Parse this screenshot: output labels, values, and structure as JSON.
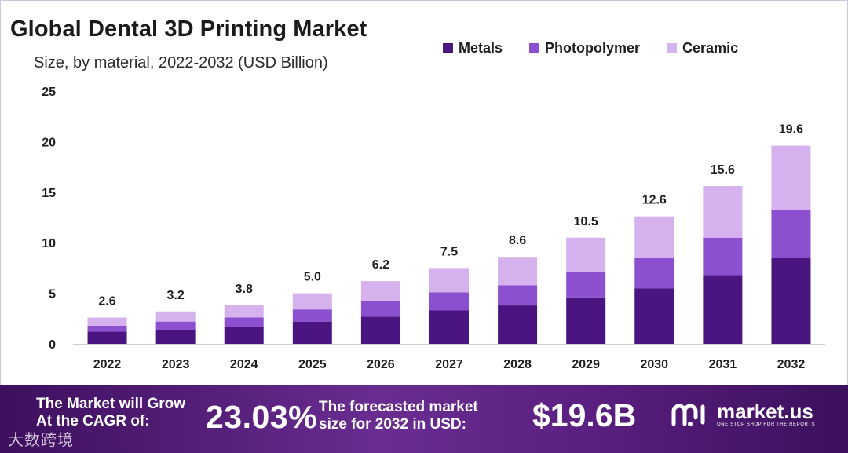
{
  "header": {
    "title": "Global Dental 3D Printing Market",
    "subtitle": "Size, by material, 2022-2032 (USD Billion)"
  },
  "colors": {
    "metals": "#4a1580",
    "photopolymer": "#8c4fd0",
    "ceramic": "#d5b1ee",
    "axis": "#cccccc",
    "banner_start": "#3d0f5e",
    "banner_end": "#6a2c91"
  },
  "chart_data": {
    "type": "bar",
    "stacked": true,
    "title": "Global Dental 3D Printing Market",
    "subtitle": "Size, by material, 2022-2032 (USD Billion)",
    "xlabel": "",
    "ylabel": "",
    "ylim": [
      0,
      25
    ],
    "yticks": [
      0,
      5,
      10,
      15,
      20,
      25
    ],
    "legend_position": "top-right",
    "grid": false,
    "categories": [
      "2022",
      "2023",
      "2024",
      "2025",
      "2026",
      "2027",
      "2028",
      "2029",
      "2030",
      "2031",
      "2032"
    ],
    "series": [
      {
        "name": "Metals",
        "values": [
          1.2,
          1.4,
          1.7,
          2.2,
          2.7,
          3.3,
          3.8,
          4.6,
          5.5,
          6.8,
          8.5
        ]
      },
      {
        "name": "Photopolymer",
        "values": [
          0.6,
          0.8,
          0.9,
          1.2,
          1.5,
          1.8,
          2.0,
          2.5,
          3.0,
          3.7,
          4.7
        ]
      },
      {
        "name": "Ceramic",
        "values": [
          0.8,
          1.0,
          1.2,
          1.6,
          2.0,
          2.4,
          2.8,
          3.4,
          4.1,
          5.1,
          6.4
        ]
      }
    ],
    "totals": [
      2.6,
      3.2,
      3.8,
      5.0,
      6.2,
      7.5,
      8.6,
      10.5,
      12.6,
      15.6,
      19.6
    ],
    "total_labels": [
      "2.6",
      "3.2",
      "3.8",
      "5.0",
      "6.2",
      "7.5",
      "8.6",
      "10.5",
      "12.6",
      "15.6",
      "19.6"
    ]
  },
  "banner": {
    "grow_label_line1": "The Market will Grow",
    "grow_label_line2": "At the CAGR of:",
    "cagr_value": "23.03%",
    "forecast_label_line1": "The forecasted market",
    "forecast_label_line2": "size for 2032 in USD:",
    "forecast_value": "$19.6B",
    "brand_name": "market.us",
    "brand_tagline": "ONE STOP SHOP FOR THE REPORTS",
    "watermark_text": "大数跨境"
  }
}
